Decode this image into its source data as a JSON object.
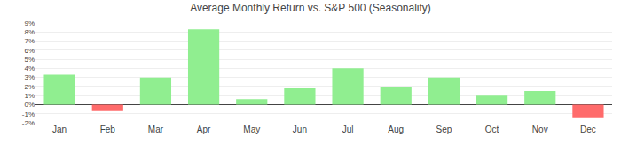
{
  "chart_data": {
    "type": "bar",
    "title": "Average Monthly Return vs. S&P 500 (Seasonality)",
    "categories": [
      "Jan",
      "Feb",
      "Mar",
      "Apr",
      "May",
      "Jun",
      "Jul",
      "Aug",
      "Sep",
      "Oct",
      "Nov",
      "Dec"
    ],
    "values": [
      3.3,
      -0.7,
      3.0,
      8.3,
      0.6,
      1.8,
      4.0,
      2.0,
      3.0,
      1.0,
      1.5,
      -1.5
    ],
    "colors": [
      "#90EE90",
      "#FF6B6B",
      "#90EE90",
      "#90EE90",
      "#90EE90",
      "#90EE90",
      "#90EE90",
      "#90EE90",
      "#90EE90",
      "#90EE90",
      "#90EE90",
      "#FF6B6B"
    ],
    "ylim": [
      -2,
      9
    ],
    "yticks": [
      {
        "value": -2,
        "label": "-2%"
      },
      {
        "value": -1,
        "label": "-1%"
      },
      {
        "value": 0,
        "label": "0%"
      },
      {
        "value": 1,
        "label": "1%"
      },
      {
        "value": 2,
        "label": "2%"
      },
      {
        "value": 3,
        "label": "3%"
      },
      {
        "value": 4,
        "label": "4%"
      },
      {
        "value": 5,
        "label": "5%"
      },
      {
        "value": 6,
        "label": "6%"
      },
      {
        "value": 7,
        "label": "7%"
      },
      {
        "value": 8,
        "label": "8%"
      },
      {
        "value": 9,
        "label": "9%"
      }
    ],
    "grid": true
  }
}
